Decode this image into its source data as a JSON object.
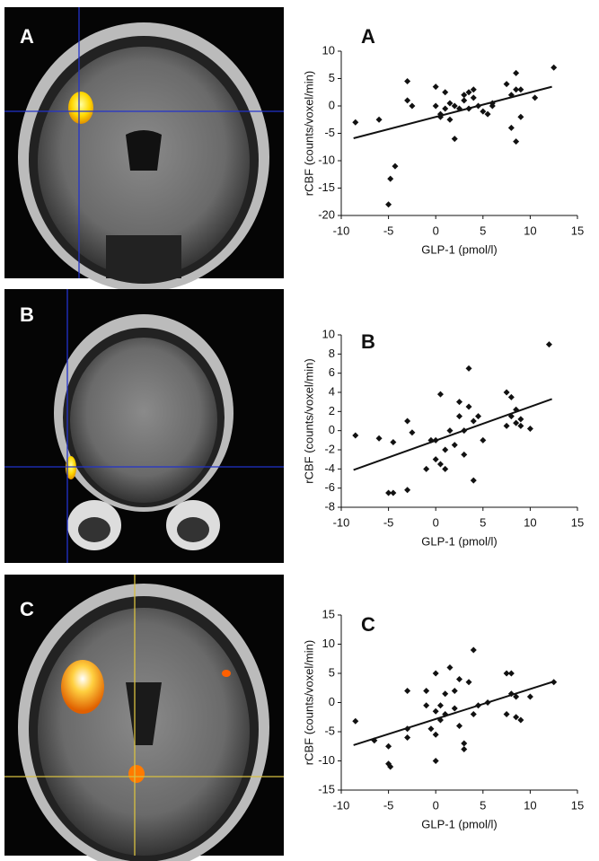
{
  "image_labels": [
    "A",
    "B",
    "C"
  ],
  "chart_data": [
    {
      "type": "scatter",
      "title": "A",
      "x_label": "GLP-1 (pmol/l)",
      "y_label": "rCBF (counts/voxel/min)",
      "x": [
        -8.5,
        -6,
        -5,
        -4.8,
        -4.3,
        -3,
        -3,
        -2.5,
        0,
        0,
        0.5,
        0.5,
        1,
        1,
        1.5,
        1.5,
        2,
        2,
        2.5,
        3,
        3,
        3.5,
        3.5,
        4,
        4,
        4.5,
        5,
        5.5,
        6,
        6,
        7.5,
        8,
        8,
        8.5,
        8.5,
        8.5,
        9,
        9,
        10.5,
        12.5
      ],
      "values": [
        -3,
        -2.5,
        -18,
        -13.3,
        -11,
        4.5,
        1,
        0,
        3.5,
        0,
        -1.5,
        -2,
        -0.5,
        2.5,
        -2.5,
        0.5,
        -6,
        0,
        -0.5,
        1,
        2,
        2.5,
        -0.5,
        1.5,
        3,
        0,
        -1,
        -1.5,
        0,
        0.5,
        4,
        -4,
        2,
        6,
        3,
        -6.5,
        -2,
        3,
        1.5,
        7
      ],
      "color": "#111111",
      "trend": {
        "x": [
          -8.7,
          12.3
        ],
        "values": [
          -5.9,
          3.5
        ]
      },
      "xlim": [
        -10,
        15
      ],
      "xticks": [
        -10,
        -5,
        0,
        5,
        10,
        15
      ],
      "ylim": [
        -20,
        10
      ],
      "yticks": [
        -20,
        -15,
        -10,
        -5,
        0,
        5,
        10
      ]
    },
    {
      "type": "scatter",
      "title": "B",
      "x_label": "GLP-1 (pmol/l)",
      "y_label": "rCBF (counts/voxel/min)",
      "x": [
        -8.5,
        -6,
        -5,
        -4.5,
        -4.5,
        -3,
        -3,
        -2.5,
        -1,
        -0.5,
        0,
        0,
        0.5,
        0.5,
        1,
        1,
        1.5,
        2,
        2.5,
        2.5,
        3,
        3,
        3.5,
        3.5,
        4,
        4,
        4.5,
        5,
        7.5,
        7.5,
        8,
        8,
        8.5,
        8.5,
        9,
        9,
        10,
        12
      ],
      "values": [
        -0.5,
        -0.8,
        -6.5,
        -6.5,
        -1.2,
        -6.2,
        1,
        -0.2,
        -4,
        -1,
        -3,
        -1,
        -3.5,
        3.8,
        -4,
        -2,
        0,
        -1.5,
        3,
        1.5,
        -2.5,
        0,
        2.5,
        6.5,
        -5.2,
        1,
        1.5,
        -1,
        4,
        0.5,
        1.5,
        3.5,
        2.2,
        0.8,
        1.2,
        0.5,
        0.2,
        9
      ],
      "color": "#111111",
      "trend": {
        "x": [
          -8.7,
          12.3
        ],
        "values": [
          -4.1,
          3.3
        ]
      },
      "xlim": [
        -10,
        15
      ],
      "xticks": [
        -10,
        -5,
        0,
        5,
        10,
        15
      ],
      "ylim": [
        -8,
        10
      ],
      "yticks": [
        -8,
        -6,
        -4,
        -2,
        0,
        2,
        4,
        6,
        8,
        10
      ]
    },
    {
      "type": "scatter",
      "title": "C",
      "x_label": "GLP-1 (pmol/l)",
      "y_label": "rCBF (counts/voxel/min)",
      "x": [
        -8.5,
        -6.5,
        -5,
        -5,
        -4.8,
        -3,
        -3,
        -3,
        -1,
        -1,
        -0.5,
        0,
        0,
        0,
        0,
        0.5,
        0.5,
        1,
        1,
        1.5,
        2,
        2,
        2.5,
        2.5,
        3,
        3,
        3.5,
        4,
        4,
        4.5,
        5.5,
        7.5,
        7.5,
        8,
        8,
        8.5,
        8.5,
        9,
        10,
        12.5
      ],
      "values": [
        -3.2,
        -6.5,
        -7.5,
        -10.5,
        -11,
        -4.5,
        2,
        -6,
        -0.5,
        2,
        -4.5,
        -1.5,
        -5.5,
        5,
        -10,
        -3,
        -0.5,
        -2,
        1.5,
        6,
        -1,
        2,
        -4,
        4,
        -8,
        -7,
        3.5,
        -2,
        9,
        -0.5,
        0,
        5,
        -2,
        5,
        1.5,
        -2.5,
        1,
        -3,
        1,
        3.5
      ],
      "color": "#111111",
      "trend": {
        "x": [
          -8.7,
          12.3
        ],
        "values": [
          -7.3,
          3.5
        ]
      },
      "xlim": [
        -10,
        15
      ],
      "xticks": [
        -10,
        -5,
        0,
        5,
        10,
        15
      ],
      "ylim": [
        -15,
        15
      ],
      "yticks": [
        -15,
        -10,
        -5,
        0,
        5,
        10,
        15
      ]
    }
  ]
}
